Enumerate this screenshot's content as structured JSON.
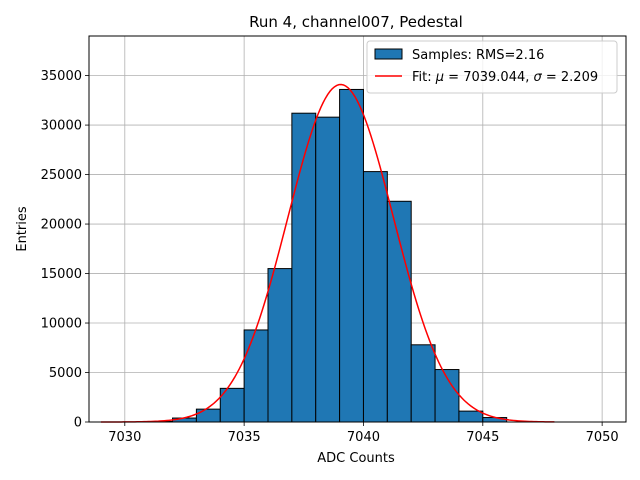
{
  "chart_data": {
    "type": "bar",
    "title": "Run 4, channel007, Pedestal",
    "xlabel": "ADC Counts",
    "ylabel": "Entries",
    "xlim": [
      7028.5,
      7051.0
    ],
    "ylim": [
      0,
      39000
    ],
    "xticks": [
      7030,
      7035,
      7040,
      7045,
      7050
    ],
    "yticks": [
      0,
      5000,
      10000,
      15000,
      20000,
      25000,
      30000,
      35000
    ],
    "grid": true,
    "legend_position": "top-right",
    "histogram": {
      "name": "Samples: RMS=2.16",
      "bin_edges": [
        7031,
        7032,
        7033,
        7034,
        7035,
        7036,
        7037,
        7038,
        7039,
        7040,
        7041,
        7042,
        7043,
        7044,
        7045,
        7046
      ],
      "counts": [
        50,
        400,
        1300,
        3400,
        9300,
        15500,
        31200,
        30800,
        33600,
        25300,
        22300,
        7800,
        5300,
        1100,
        450
      ],
      "color": "#1f77b4",
      "edgecolor": "#000000"
    },
    "fit": {
      "name": "Fit: μ = 7039.044, σ = 2.209",
      "name_parts": {
        "prefix": "Fit: ",
        "mu_symbol": "μ",
        "mu_value": " = 7039.044, ",
        "sigma_symbol": "σ",
        "sigma_value": " = 2.209"
      },
      "mu": 7039.044,
      "sigma": 2.209,
      "amplitude": 34100,
      "x_range": [
        7029,
        7048
      ],
      "color": "#ff0000"
    }
  }
}
